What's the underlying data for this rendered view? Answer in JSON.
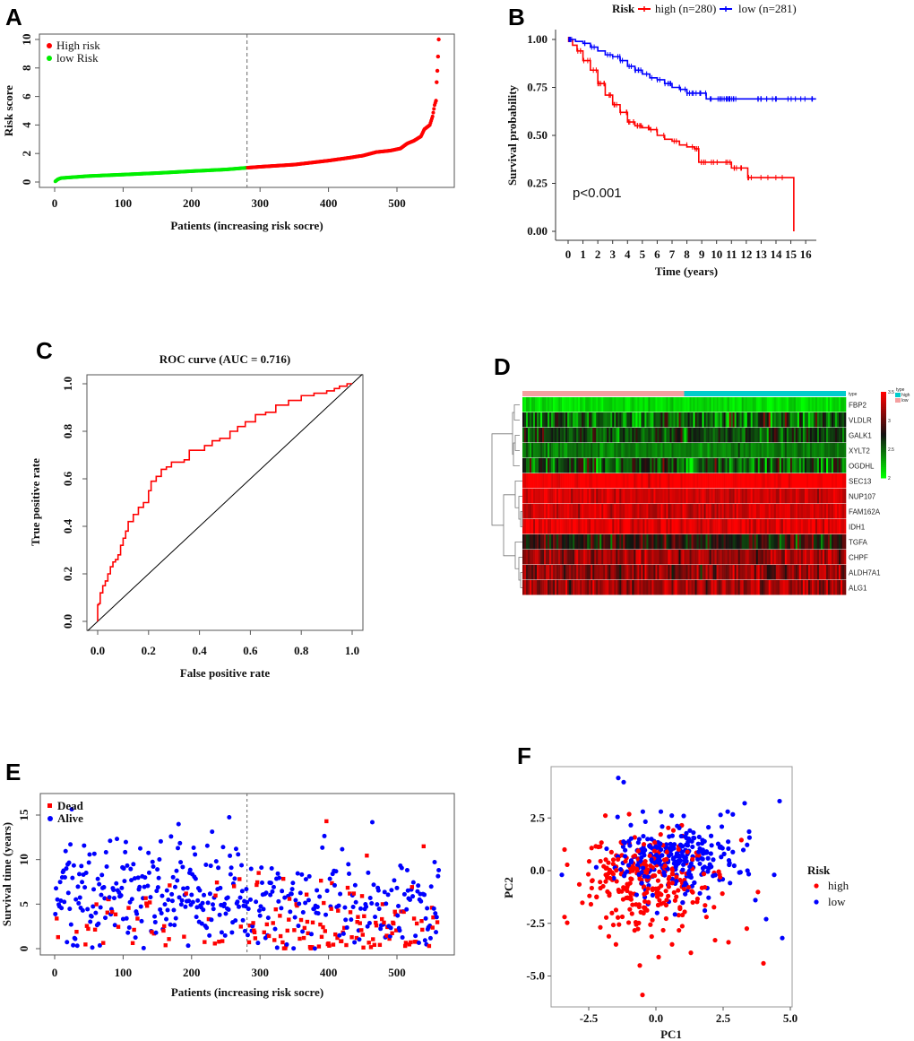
{
  "panels": {
    "A": {
      "letter": "A"
    },
    "B": {
      "letter": "B"
    },
    "C": {
      "letter": "C"
    },
    "D": {
      "letter": "D"
    },
    "E": {
      "letter": "E"
    },
    "F": {
      "letter": "F"
    }
  },
  "colors": {
    "high": "#ff0000",
    "low_green": "#00ee00",
    "low_blue": "#0000ff",
    "dead": "#ff0000",
    "alive": "#0000ff",
    "heat_low": "#00ff00",
    "heat_mid": "#111111",
    "heat_high": "#ff0000",
    "anno_high": "#00cccc",
    "anno_low": "#f4a0a0"
  },
  "chart_data": [
    {
      "id": "A",
      "type": "scatter",
      "title": "",
      "xlabel": "Patients (increasing risk socre)",
      "ylabel": "Risk score",
      "xlim": [
        0,
        561
      ],
      "ylim": [
        0,
        10
      ],
      "xticks": [
        "0",
        "100",
        "200",
        "300",
        "400",
        "500"
      ],
      "yticks": [
        "0",
        "2",
        "4",
        "6",
        "8",
        "10"
      ],
      "cutoff_x": 281,
      "n_total": 561,
      "legend": {
        "position": "top-left",
        "entries": [
          "High risk",
          "low Risk"
        ]
      },
      "curve_knots": [
        [
          1,
          0.05
        ],
        [
          5,
          0.2
        ],
        [
          10,
          0.28
        ],
        [
          50,
          0.42
        ],
        [
          100,
          0.52
        ],
        [
          150,
          0.63
        ],
        [
          200,
          0.76
        ],
        [
          250,
          0.88
        ],
        [
          281,
          1.0
        ],
        [
          300,
          1.07
        ],
        [
          350,
          1.22
        ],
        [
          400,
          1.5
        ],
        [
          430,
          1.7
        ],
        [
          450,
          1.85
        ],
        [
          470,
          2.1
        ],
        [
          490,
          2.2
        ],
        [
          505,
          2.35
        ],
        [
          515,
          2.7
        ],
        [
          525,
          2.9
        ],
        [
          535,
          3.2
        ],
        [
          540,
          3.7
        ],
        [
          548,
          4.0
        ],
        [
          552,
          4.6
        ],
        [
          555,
          5.4
        ],
        [
          557,
          5.7
        ],
        [
          558,
          7.0
        ],
        [
          559,
          7.8
        ],
        [
          560,
          8.8
        ],
        [
          561,
          10.0
        ]
      ]
    },
    {
      "id": "B",
      "type": "line",
      "title": "",
      "xlabel": "Time (years)",
      "ylabel": "Survival probability",
      "xlim": [
        0,
        16.7
      ],
      "ylim": [
        0,
        1
      ],
      "xticks": [
        "0",
        "1",
        "2",
        "3",
        "4",
        "5",
        "6",
        "7",
        "8",
        "9",
        "10",
        "11",
        "12",
        "13",
        "14",
        "15",
        "16"
      ],
      "yticks": [
        "0.00",
        "0.25",
        "0.50",
        "0.75",
        "1.00"
      ],
      "legend": {
        "title": "Risk",
        "position": "top",
        "entries": [
          "high (n=280)",
          "low (n=281)"
        ]
      },
      "annotation": "p<0.001",
      "series": [
        {
          "name": "high (n=280)",
          "x": [
            0,
            0.3,
            0.6,
            1,
            1.5,
            2,
            2.5,
            3,
            3.5,
            4,
            4.5,
            5,
            5.5,
            6,
            6.5,
            7,
            7.5,
            8,
            8.5,
            8.8,
            9.5,
            10,
            10.5,
            11,
            11.5,
            12.1,
            13,
            14,
            15.2,
            15.2
          ],
          "y": [
            1.0,
            0.97,
            0.94,
            0.89,
            0.84,
            0.77,
            0.71,
            0.66,
            0.62,
            0.57,
            0.55,
            0.54,
            0.53,
            0.5,
            0.48,
            0.47,
            0.45,
            0.44,
            0.43,
            0.36,
            0.36,
            0.36,
            0.36,
            0.33,
            0.33,
            0.28,
            0.28,
            0.28,
            0.28,
            0.0
          ]
        },
        {
          "name": "low (n=281)",
          "x": [
            0,
            0.5,
            1,
            1.5,
            2,
            2.5,
            3,
            3.5,
            4,
            4.5,
            5,
            5.5,
            6,
            6.5,
            7,
            7.5,
            8,
            8.5,
            9,
            9.3,
            10,
            12,
            14,
            16.7
          ],
          "y": [
            1.0,
            0.99,
            0.98,
            0.96,
            0.94,
            0.92,
            0.91,
            0.89,
            0.86,
            0.84,
            0.82,
            0.8,
            0.79,
            0.77,
            0.75,
            0.74,
            0.72,
            0.72,
            0.72,
            0.69,
            0.69,
            0.69,
            0.69,
            0.69
          ]
        }
      ]
    },
    {
      "id": "C",
      "type": "line",
      "title": "ROC curve (AUC = 0.716)",
      "xlabel": "False positive rate",
      "ylabel": "True positive rate",
      "xlim": [
        -0.04,
        1.04
      ],
      "ylim": [
        -0.04,
        1.04
      ],
      "xticks": [
        "0.0",
        "0.2",
        "0.4",
        "0.6",
        "0.8",
        "1.0"
      ],
      "yticks": [
        "0.0",
        "0.2",
        "0.4",
        "0.6",
        "0.8",
        "1.0"
      ],
      "auc": 0.716,
      "series": [
        {
          "name": "ROC",
          "x": [
            0,
            0.005,
            0.01,
            0.02,
            0.03,
            0.04,
            0.05,
            0.06,
            0.07,
            0.08,
            0.09,
            0.1,
            0.11,
            0.12,
            0.14,
            0.16,
            0.18,
            0.2,
            0.21,
            0.23,
            0.25,
            0.27,
            0.29,
            0.31,
            0.34,
            0.36,
            0.38,
            0.42,
            0.45,
            0.48,
            0.52,
            0.55,
            0.58,
            0.62,
            0.66,
            0.7,
            0.75,
            0.8,
            0.85,
            0.9,
            0.93,
            0.95,
            0.98,
            1.0
          ],
          "y": [
            0,
            0.07,
            0.075,
            0.12,
            0.15,
            0.17,
            0.2,
            0.23,
            0.25,
            0.26,
            0.28,
            0.32,
            0.35,
            0.38,
            0.42,
            0.45,
            0.48,
            0.5,
            0.55,
            0.59,
            0.61,
            0.64,
            0.65,
            0.67,
            0.67,
            0.68,
            0.72,
            0.72,
            0.74,
            0.76,
            0.77,
            0.8,
            0.82,
            0.84,
            0.87,
            0.88,
            0.91,
            0.93,
            0.95,
            0.96,
            0.97,
            0.98,
            0.99,
            1.0
          ]
        },
        {
          "name": "reference",
          "x": [
            -0.04,
            1.04
          ],
          "y": [
            -0.04,
            1.04
          ]
        }
      ]
    },
    {
      "id": "D",
      "type": "heatmap",
      "title": "",
      "rows": [
        "FBP2",
        "VLDLR",
        "GALK1",
        "XYLT2",
        "OGDHL",
        "SEC13",
        "NUP107",
        "FAM162A",
        "IDH1",
        "TGFA",
        "CHPF",
        "ALDH7A1",
        "ALG1"
      ],
      "row_mean_values": [
        2.1,
        2.5,
        2.6,
        2.4,
        2.55,
        3.5,
        3.35,
        3.35,
        3.4,
        2.8,
        3.2,
        3.15,
        3.2
      ],
      "row_variability": [
        0.08,
        0.35,
        0.2,
        0.1,
        0.3,
        0.08,
        0.12,
        0.12,
        0.12,
        0.25,
        0.18,
        0.2,
        0.2
      ],
      "n_columns": 561,
      "annotation": {
        "title": "type",
        "groups": [
          {
            "label": "low",
            "fraction": 0.5
          },
          {
            "label": "high",
            "fraction": 0.5
          }
        ]
      },
      "colorbar": {
        "min": 2,
        "max": 3.5,
        "ticks": [
          "3.5",
          "3",
          "2.5",
          "2"
        ]
      },
      "legend_title": "type",
      "legend_entries": [
        "high",
        "low"
      ],
      "dendrogram": true
    },
    {
      "id": "E",
      "type": "scatter",
      "title": "",
      "xlabel": "Patients (increasing risk socre)",
      "ylabel": "Survival time (years)",
      "xlim": [
        0,
        561
      ],
      "ylim": [
        0,
        17
      ],
      "xticks": [
        "0",
        "100",
        "200",
        "300",
        "400",
        "500"
      ],
      "yticks": [
        "0",
        "5",
        "10",
        "15"
      ],
      "cutoff_x": 281,
      "legend": {
        "position": "top-left",
        "entries": [
          "Dead",
          "Alive"
        ]
      },
      "n_points": 561,
      "dead_fraction_low": 0.17,
      "dead_fraction_high": 0.45
    },
    {
      "id": "F",
      "type": "scatter",
      "title": "",
      "xlabel": "PC1",
      "ylabel": "PC2",
      "xlim": [
        -3.9,
        5.1
      ],
      "ylim": [
        -6.6,
        5.0
      ],
      "xticks": [
        "-2.5",
        "0.0",
        "2.5",
        "5.0"
      ],
      "yticks": [
        "2.5",
        "0.0",
        "-2.5",
        "-5.0"
      ],
      "legend": {
        "title": "Risk",
        "position": "right",
        "entries": [
          "high",
          "low"
        ]
      },
      "groups": [
        {
          "name": "high",
          "n": 280,
          "center": [
            -0.4,
            -0.6
          ],
          "spread": [
            1.2,
            1.1
          ]
        },
        {
          "name": "low",
          "n": 281,
          "center": [
            0.7,
            0.6
          ],
          "spread": [
            1.1,
            0.9
          ]
        }
      ],
      "outliers_high": [
        [
          -3.4,
          1.0
        ],
        [
          -3.4,
          -2.2
        ],
        [
          -0.6,
          -4.5
        ],
        [
          -0.5,
          -5.9
        ],
        [
          0.1,
          -4.1
        ],
        [
          4.0,
          -4.4
        ],
        [
          1.3,
          -3.9
        ],
        [
          0.6,
          -3.5
        ],
        [
          2.2,
          -3.3
        ],
        [
          2.7,
          -3.4
        ]
      ],
      "outliers_low": [
        [
          -1.4,
          4.4
        ],
        [
          -1.2,
          4.2
        ],
        [
          4.6,
          3.3
        ],
        [
          3.3,
          3.2
        ],
        [
          4.7,
          -3.2
        ],
        [
          3.7,
          -1.4
        ],
        [
          4.4,
          -0.2
        ],
        [
          4.1,
          -2.3
        ],
        [
          -3.5,
          -0.2
        ]
      ]
    }
  ]
}
